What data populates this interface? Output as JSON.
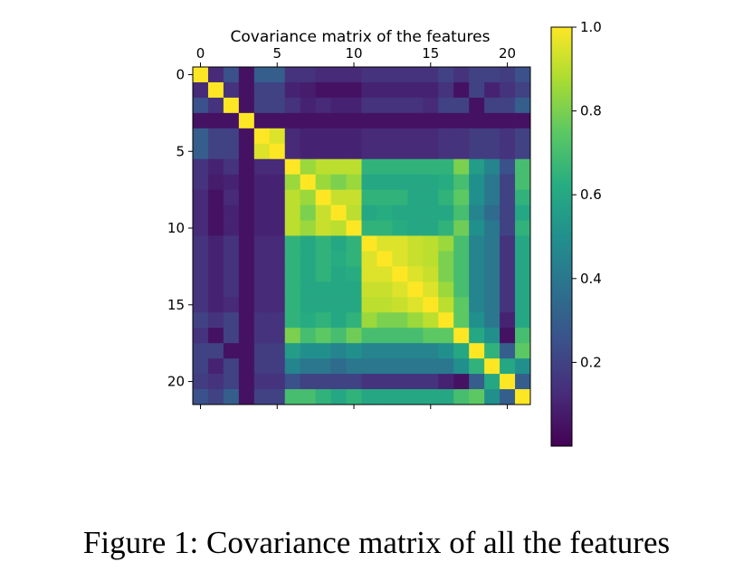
{
  "caption": "Figure 1: Covariance matrix of all the features",
  "chart_data": {
    "type": "heatmap",
    "title": "Covariance matrix of the features",
    "xlabel": "",
    "ylabel": "",
    "x_ticks": [
      0,
      5,
      10,
      15,
      20
    ],
    "y_ticks": [
      0,
      5,
      10,
      15,
      20
    ],
    "n": 22,
    "colormap": "viridis",
    "colorbar": {
      "min": 0.0,
      "max": 1.0,
      "ticks": [
        0.2,
        0.4,
        0.6,
        0.8,
        1.0
      ],
      "tick_labels": [
        "0.2",
        "0.4",
        "0.6",
        "0.8",
        "1.0"
      ]
    },
    "values": [
      [
        1.0,
        0.12,
        0.25,
        0.05,
        0.3,
        0.3,
        0.15,
        0.15,
        0.12,
        0.12,
        0.12,
        0.15,
        0.15,
        0.15,
        0.15,
        0.15,
        0.2,
        0.15,
        0.2,
        0.2,
        0.18,
        0.25
      ],
      [
        0.12,
        1.0,
        0.15,
        0.05,
        0.2,
        0.2,
        0.1,
        0.08,
        0.05,
        0.05,
        0.05,
        0.1,
        0.1,
        0.1,
        0.1,
        0.1,
        0.15,
        0.05,
        0.2,
        0.1,
        0.15,
        0.2
      ],
      [
        0.25,
        0.15,
        1.0,
        0.05,
        0.2,
        0.2,
        0.15,
        0.1,
        0.12,
        0.1,
        0.1,
        0.15,
        0.15,
        0.15,
        0.15,
        0.12,
        0.2,
        0.2,
        0.05,
        0.2,
        0.2,
        0.3
      ],
      [
        0.05,
        0.05,
        0.05,
        1.0,
        0.05,
        0.05,
        0.05,
        0.05,
        0.05,
        0.05,
        0.05,
        0.05,
        0.05,
        0.05,
        0.05,
        0.05,
        0.05,
        0.05,
        0.05,
        0.05,
        0.05,
        0.05
      ],
      [
        0.3,
        0.2,
        0.2,
        0.05,
        1.0,
        0.95,
        0.12,
        0.1,
        0.1,
        0.1,
        0.1,
        0.12,
        0.12,
        0.12,
        0.12,
        0.12,
        0.15,
        0.15,
        0.18,
        0.18,
        0.15,
        0.2
      ],
      [
        0.3,
        0.2,
        0.2,
        0.05,
        0.95,
        1.0,
        0.12,
        0.1,
        0.1,
        0.1,
        0.1,
        0.12,
        0.12,
        0.12,
        0.12,
        0.12,
        0.15,
        0.15,
        0.18,
        0.18,
        0.15,
        0.2
      ],
      [
        0.15,
        0.1,
        0.15,
        0.05,
        0.12,
        0.12,
        1.0,
        0.85,
        0.9,
        0.9,
        0.9,
        0.65,
        0.65,
        0.65,
        0.65,
        0.65,
        0.65,
        0.8,
        0.55,
        0.45,
        0.25,
        0.7
      ],
      [
        0.15,
        0.08,
        0.1,
        0.05,
        0.1,
        0.1,
        0.85,
        1.0,
        0.85,
        0.8,
        0.85,
        0.6,
        0.6,
        0.6,
        0.6,
        0.6,
        0.62,
        0.7,
        0.5,
        0.4,
        0.2,
        0.7
      ],
      [
        0.12,
        0.05,
        0.12,
        0.05,
        0.1,
        0.1,
        0.9,
        0.85,
        1.0,
        0.92,
        0.92,
        0.65,
        0.65,
        0.65,
        0.6,
        0.6,
        0.65,
        0.75,
        0.5,
        0.4,
        0.2,
        0.65
      ],
      [
        0.12,
        0.05,
        0.1,
        0.05,
        0.1,
        0.1,
        0.9,
        0.8,
        0.92,
        1.0,
        0.9,
        0.6,
        0.62,
        0.6,
        0.6,
        0.6,
        0.6,
        0.7,
        0.45,
        0.35,
        0.2,
        0.6
      ],
      [
        0.12,
        0.05,
        0.1,
        0.05,
        0.1,
        0.1,
        0.9,
        0.85,
        0.92,
        0.9,
        1.0,
        0.65,
        0.65,
        0.62,
        0.6,
        0.6,
        0.65,
        0.78,
        0.5,
        0.4,
        0.2,
        0.65
      ],
      [
        0.15,
        0.1,
        0.15,
        0.05,
        0.12,
        0.12,
        0.65,
        0.6,
        0.65,
        0.6,
        0.65,
        1.0,
        0.95,
        0.95,
        0.92,
        0.9,
        0.85,
        0.7,
        0.45,
        0.4,
        0.15,
        0.6
      ],
      [
        0.15,
        0.1,
        0.15,
        0.05,
        0.12,
        0.12,
        0.65,
        0.6,
        0.65,
        0.62,
        0.65,
        0.95,
        1.0,
        0.95,
        0.92,
        0.9,
        0.8,
        0.7,
        0.45,
        0.4,
        0.15,
        0.6
      ],
      [
        0.15,
        0.1,
        0.15,
        0.05,
        0.12,
        0.12,
        0.65,
        0.6,
        0.65,
        0.6,
        0.62,
        0.95,
        0.95,
        1.0,
        0.95,
        0.92,
        0.8,
        0.7,
        0.45,
        0.4,
        0.15,
        0.6
      ],
      [
        0.15,
        0.1,
        0.15,
        0.05,
        0.12,
        0.12,
        0.65,
        0.6,
        0.6,
        0.6,
        0.6,
        0.92,
        0.92,
        0.95,
        1.0,
        0.95,
        0.85,
        0.7,
        0.45,
        0.4,
        0.15,
        0.6
      ],
      [
        0.15,
        0.1,
        0.12,
        0.05,
        0.12,
        0.12,
        0.65,
        0.6,
        0.6,
        0.6,
        0.6,
        0.9,
        0.9,
        0.92,
        0.95,
        1.0,
        0.9,
        0.75,
        0.45,
        0.4,
        0.15,
        0.6
      ],
      [
        0.2,
        0.15,
        0.2,
        0.05,
        0.15,
        0.15,
        0.65,
        0.62,
        0.65,
        0.6,
        0.65,
        0.85,
        0.8,
        0.8,
        0.85,
        0.9,
        1.0,
        0.75,
        0.5,
        0.4,
        0.1,
        0.6
      ],
      [
        0.15,
        0.05,
        0.2,
        0.05,
        0.15,
        0.15,
        0.8,
        0.7,
        0.75,
        0.7,
        0.78,
        0.7,
        0.7,
        0.7,
        0.7,
        0.75,
        0.75,
        1.0,
        0.6,
        0.5,
        0.05,
        0.7
      ],
      [
        0.2,
        0.2,
        0.05,
        0.05,
        0.18,
        0.18,
        0.55,
        0.5,
        0.5,
        0.45,
        0.5,
        0.45,
        0.45,
        0.45,
        0.45,
        0.45,
        0.5,
        0.6,
        1.0,
        0.65,
        0.3,
        0.75
      ],
      [
        0.2,
        0.1,
        0.2,
        0.05,
        0.18,
        0.18,
        0.45,
        0.4,
        0.4,
        0.35,
        0.4,
        0.4,
        0.4,
        0.4,
        0.4,
        0.4,
        0.4,
        0.5,
        0.65,
        1.0,
        0.6,
        0.5
      ],
      [
        0.18,
        0.15,
        0.2,
        0.05,
        0.15,
        0.15,
        0.25,
        0.2,
        0.2,
        0.2,
        0.2,
        0.15,
        0.15,
        0.15,
        0.15,
        0.15,
        0.1,
        0.05,
        0.3,
        0.6,
        1.0,
        0.3
      ],
      [
        0.25,
        0.2,
        0.3,
        0.05,
        0.2,
        0.2,
        0.7,
        0.7,
        0.65,
        0.6,
        0.65,
        0.6,
        0.6,
        0.6,
        0.6,
        0.6,
        0.6,
        0.7,
        0.75,
        0.5,
        0.3,
        1.0
      ]
    ]
  }
}
